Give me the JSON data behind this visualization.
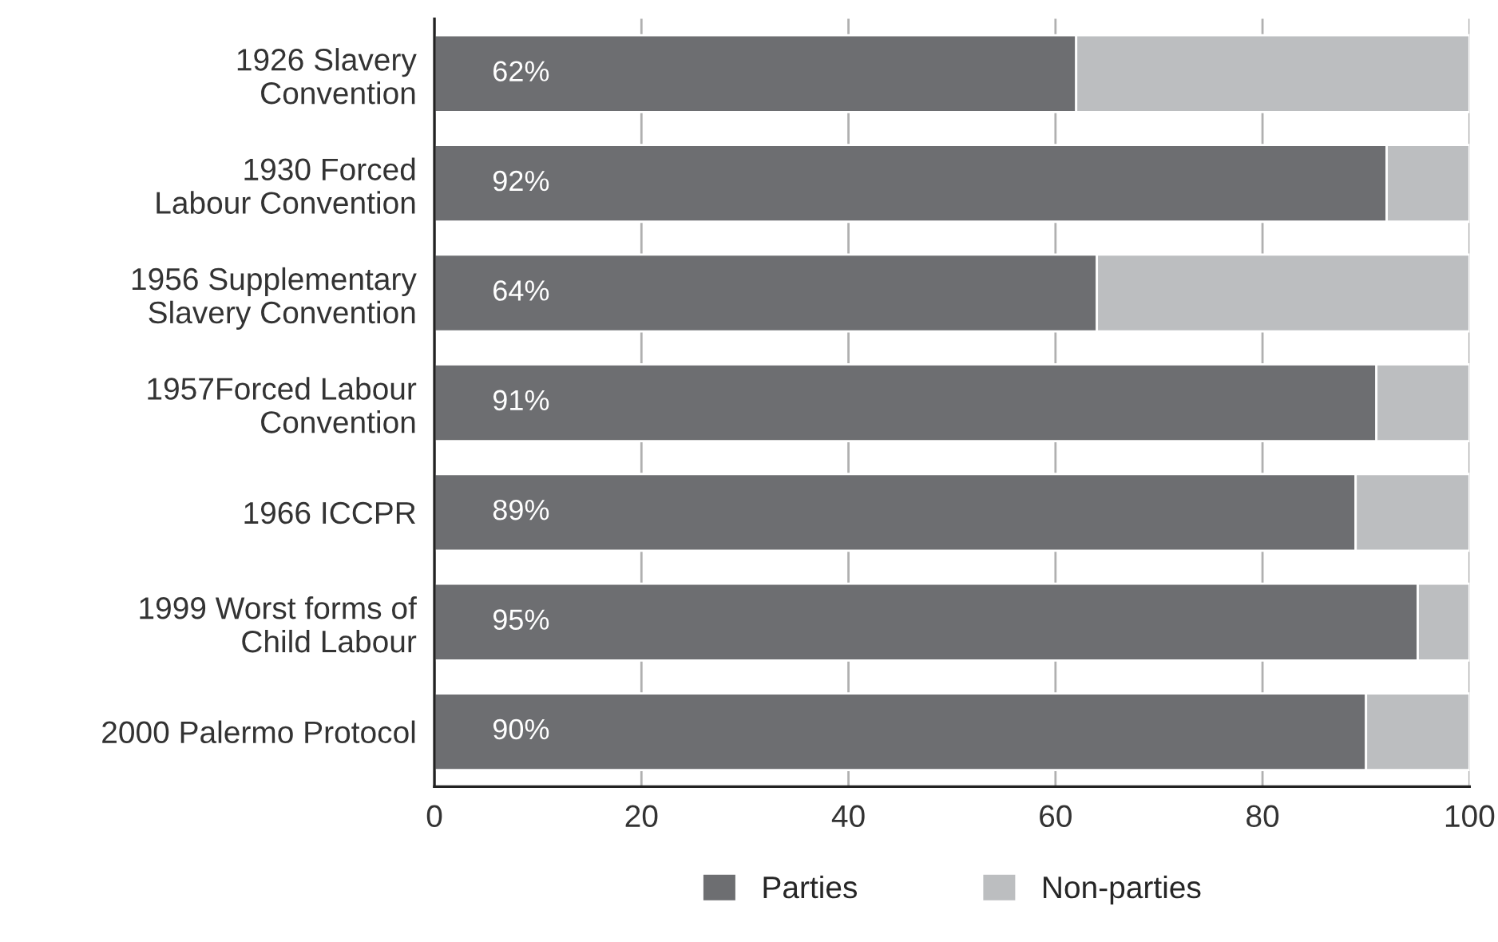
{
  "chart_data": {
    "type": "bar",
    "orientation": "horizontal",
    "stacked": true,
    "categories": [
      "1926 Slavery\nConvention",
      "1930 Forced\nLabour Convention",
      "1956 Supplementary\nSlavery Convention",
      "1957Forced Labour\nConvention",
      "1966 ICCPR",
      "1999 Worst forms of\nChild Labour",
      "2000 Palermo Protocol"
    ],
    "series": [
      {
        "name": "Parties",
        "color": "#6d6e71",
        "values": [
          62,
          92,
          64,
          91,
          89,
          95,
          90
        ],
        "value_labels": [
          "62%",
          "92%",
          "64%",
          "91%",
          "89%",
          "95%",
          "90%"
        ]
      },
      {
        "name": "Non-parties",
        "color": "#bcbec0",
        "values": [
          38,
          8,
          36,
          9,
          11,
          5,
          10
        ]
      }
    ],
    "xlim": [
      0,
      100
    ],
    "xticks": [
      0,
      20,
      40,
      60,
      80,
      100
    ],
    "grid": "x",
    "legend": "bottom"
  }
}
